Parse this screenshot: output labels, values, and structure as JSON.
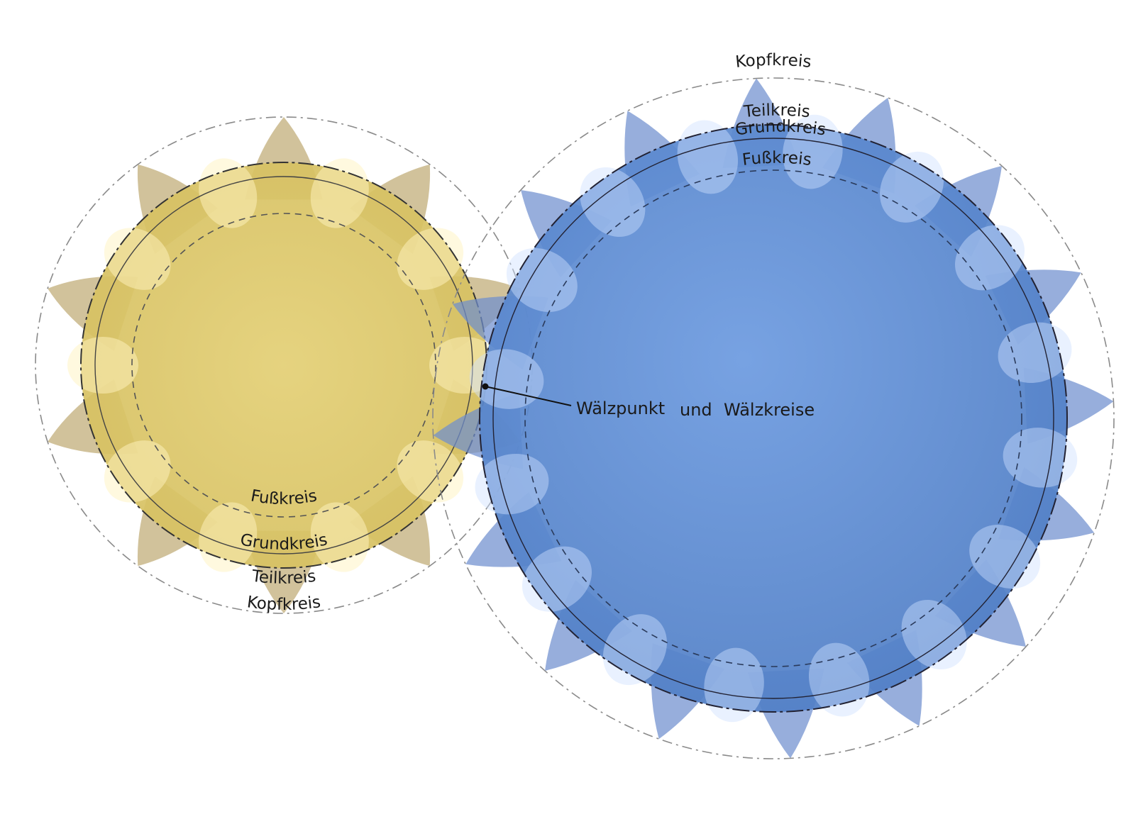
{
  "colors": {
    "small_gear": "#d8c56b",
    "small_gear_tooth": "#c2ae7a",
    "large_gear": "#5a8ad4",
    "large_gear_tooth": "#6f8fcf",
    "dashed_line": "#888888",
    "text": "#1a1a1a"
  },
  "small_gear": {
    "labels": {
      "root_circle": "Fußkreis",
      "base_circle": "Grundkreis",
      "pitch_circle": "Teilkreis",
      "tip_circle": "Kopfkreis"
    },
    "teeth": 10
  },
  "large_gear": {
    "labels": {
      "tip_circle": "Kopfkreis",
      "pitch_circle": "Teilkreis",
      "base_circle": "Grundkreis",
      "root_circle": "Fußkreis"
    },
    "teeth": 16
  },
  "callout": {
    "label_a": "Wälzpunkt",
    "label_b": "und",
    "label_c": "Wälzkreise"
  }
}
